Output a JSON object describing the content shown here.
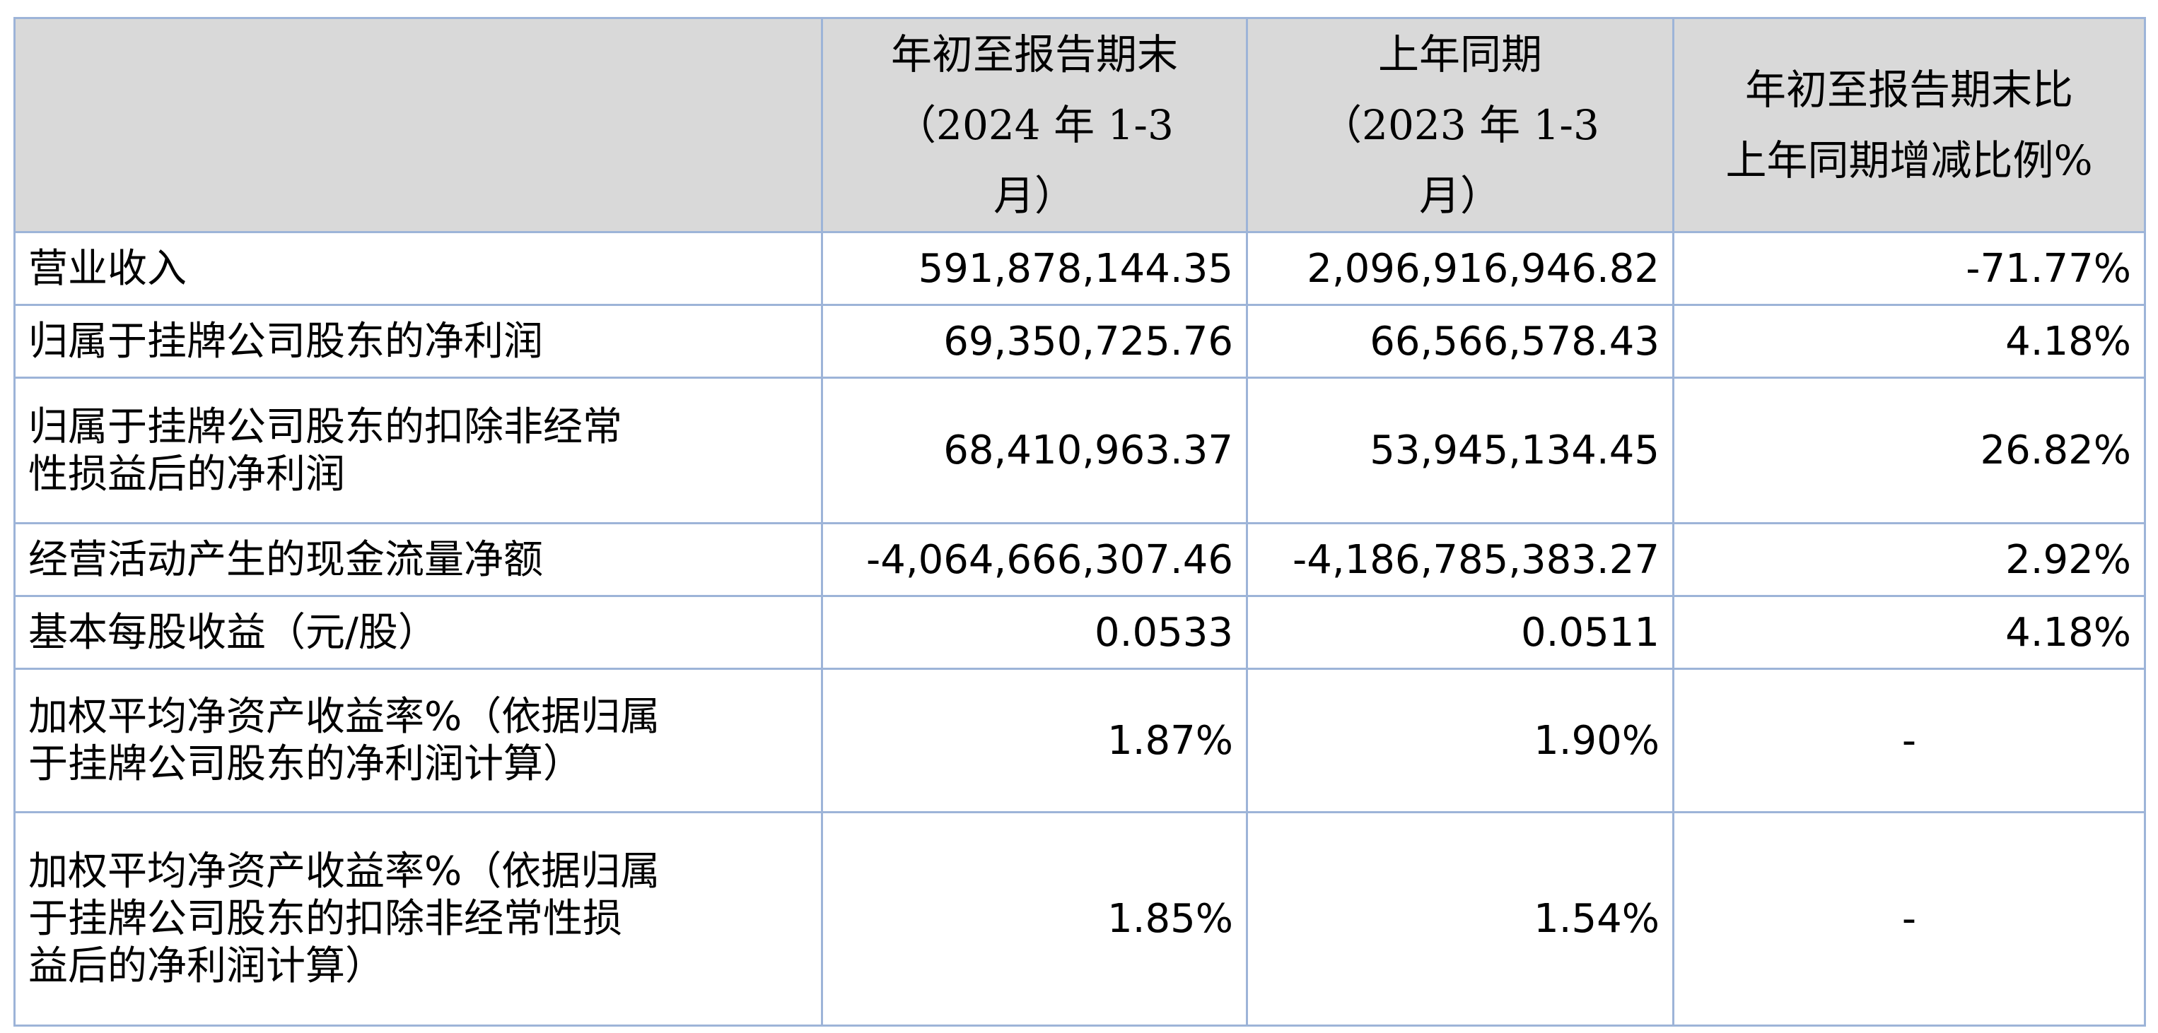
{
  "header": {
    "col1": "",
    "col2_lines": [
      "年初至报告期末",
      "（2024 年 1-3",
      "月）"
    ],
    "col3_lines": [
      "上年同期",
      "（2023 年 1-3",
      "月）"
    ],
    "col4_lines": [
      "年初至报告期末比",
      "上年同期增减比例%"
    ]
  },
  "rows": [
    {
      "label_lines": [
        "营业收入"
      ],
      "current": "591,878,144.35",
      "prior": "2,096,916,946.82",
      "change": "-71.77%"
    },
    {
      "label_lines": [
        "归属于挂牌公司股东的净利润"
      ],
      "current": "69,350,725.76",
      "prior": "66,566,578.43",
      "change": "4.18%"
    },
    {
      "label_lines": [
        "归属于挂牌公司股东的扣除非经常",
        "性损益后的净利润"
      ],
      "current": "68,410,963.37",
      "prior": "53,945,134.45",
      "change": "26.82%"
    },
    {
      "label_lines": [
        "经营活动产生的现金流量净额"
      ],
      "current": "-4,064,666,307.46",
      "prior": "-4,186,785,383.27",
      "change": "2.92%"
    },
    {
      "label_lines": [
        "基本每股收益（元/股）"
      ],
      "current": "0.0533",
      "prior": "0.0511",
      "change": "4.18%"
    },
    {
      "label_lines": [
        "加权平均净资产收益率%（依据归属",
        "于挂牌公司股东的净利润计算）"
      ],
      "current": "1.87%",
      "prior": "1.90%",
      "change": "-"
    },
    {
      "label_lines": [
        "加权平均净资产收益率%（依据归属",
        "于挂牌公司股东的扣除非经常性损",
        "益后的净利润计算）"
      ],
      "current": "1.85%",
      "prior": "1.54%",
      "change": "-"
    }
  ]
}
